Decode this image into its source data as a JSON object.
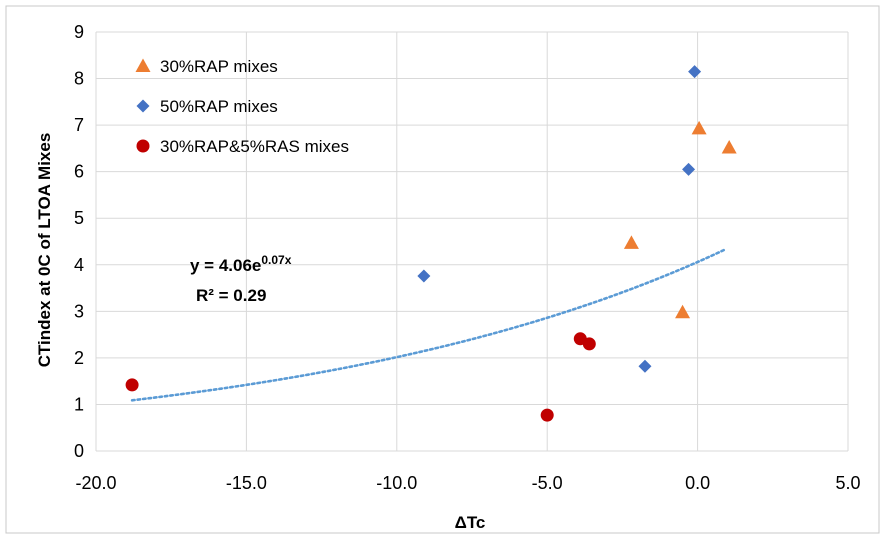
{
  "chart_data": {
    "type": "scatter",
    "xlabel": "ΔTc",
    "ylabel": "CTindex at 0C of LTOA Mixes",
    "xlim": [
      -20,
      5
    ],
    "ylim": [
      0,
      9
    ],
    "x_ticks": [
      "-20.0",
      "-15.0",
      "-10.0",
      "-5.0",
      "0.0",
      "5.0"
    ],
    "y_ticks": [
      "0",
      "1",
      "2",
      "3",
      "4",
      "5",
      "6",
      "7",
      "8",
      "9"
    ],
    "grid": true,
    "legend_position": "top-left",
    "series": [
      {
        "name": "30%RAP mixes",
        "marker": "triangle",
        "color": "#ED7D31",
        "points": [
          {
            "x": -2.2,
            "y": 4.47
          },
          {
            "x": -0.5,
            "y": 2.98
          },
          {
            "x": 0.05,
            "y": 6.93
          },
          {
            "x": 1.05,
            "y": 6.52
          }
        ]
      },
      {
        "name": "50%RAP mixes",
        "marker": "diamond",
        "color": "#4472C4",
        "points": [
          {
            "x": -9.1,
            "y": 3.76
          },
          {
            "x": -1.75,
            "y": 1.82
          },
          {
            "x": -0.3,
            "y": 6.05
          },
          {
            "x": -0.1,
            "y": 8.15
          }
        ]
      },
      {
        "name": "30%RAP&5%RAS mixes",
        "marker": "circle",
        "color": "#C00000",
        "points": [
          {
            "x": -18.8,
            "y": 1.42
          },
          {
            "x": -5.0,
            "y": 0.77
          },
          {
            "x": -3.9,
            "y": 2.41
          },
          {
            "x": -3.6,
            "y": 2.3
          }
        ]
      }
    ],
    "trendline": {
      "type": "exponential",
      "a": 4.06,
      "b": 0.07,
      "x_range": [
        -18.8,
        0.9
      ],
      "color": "#5B9BD5",
      "equation_main": "y = 4.06e",
      "equation_exp": "0.07x",
      "r2_label": "R² = 0.29"
    }
  }
}
